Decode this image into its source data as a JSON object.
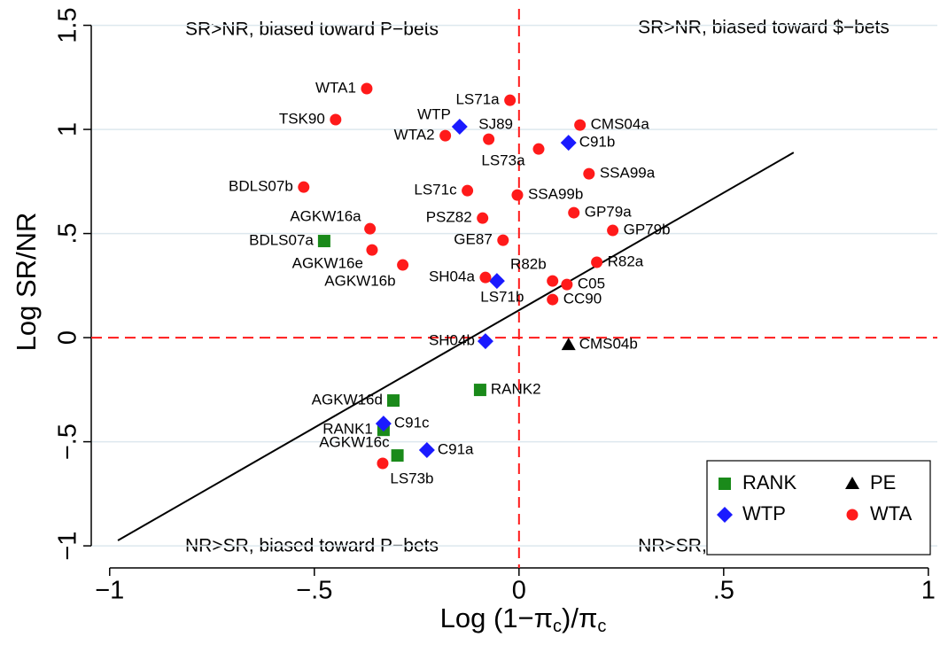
{
  "chart_data": {
    "type": "scatter",
    "x_label": [
      "Log (1−π",
      "c",
      ")/π",
      "c"
    ],
    "y_label": "Log SR/NR",
    "xlim": [
      -1.045,
      1.022
    ],
    "ylim": [
      -1.106,
      1.579
    ],
    "xticks": [
      {
        "value": -1,
        "label": "−1"
      },
      {
        "value": -0.5,
        "label": "−.5"
      },
      0,
      {
        "value": 0.5,
        "label": ".5"
      },
      1
    ],
    "yticks": [
      {
        "value": -1,
        "label": "−1"
      },
      {
        "value": -0.5,
        "label": "−.5"
      },
      0,
      {
        "value": 0.5,
        "label": ".5"
      },
      1,
      1.5
    ],
    "grid": "y",
    "ref_lines": {
      "x": 0,
      "y": 0,
      "color": "#ff1a1a"
    },
    "annotations": [
      "SR>NR, biased toward P−bets",
      "SR>NR, biased toward $−bets",
      "NR>SR, biased toward P−bets",
      "NR>SR, biased toward $−bets"
    ],
    "fit_line": {
      "x": [
        -0.98,
        0.671
      ],
      "y": [
        -0.974,
        0.889
      ],
      "color": "#000000"
    },
    "legend": "bottom-right",
    "series": [
      {
        "name": "RANK",
        "color": "#1a8a1a",
        "marker": "square",
        "labels": [
          "BDLS07a",
          "AGKW16d",
          "RANK2",
          "RANK1",
          "AGKW16c"
        ],
        "x": [
          -0.476,
          -0.307,
          -0.095,
          -0.331,
          -0.297
        ],
        "values": [
          0.464,
          -0.302,
          -0.251,
          -0.443,
          -0.566
        ]
      },
      {
        "name": "PE",
        "color": "#000000",
        "marker": "triangle",
        "labels": [
          "CMS04b"
        ],
        "x": [
          0.121
        ],
        "values": [
          -0.034
        ]
      },
      {
        "name": "WTP",
        "color": "#1a1aff",
        "marker": "diamond",
        "labels": [
          "WTP",
          "C91b",
          "LS71b",
          "SH04b",
          "C91c",
          "C91a"
        ],
        "x": [
          -0.145,
          0.121,
          -0.054,
          -0.082,
          -0.331,
          -0.225
        ],
        "values": [
          1.013,
          0.936,
          0.272,
          -0.017,
          -0.413,
          -0.54
        ]
      },
      {
        "name": "WTA",
        "color": "#ff1a1a",
        "marker": "circle",
        "labels": [
          "WTA1",
          "LS71a",
          "TSK90",
          "CMS04a",
          "WTA2",
          "SJ89",
          "LS73a",
          "SSA99a",
          "BDLS07b",
          "LS71c",
          "SSA99b",
          "GP79a",
          "PSZ82",
          "AGKW16a",
          "GP79b",
          "GE87",
          "AGKW16e",
          "AGKW16b",
          "R82a",
          "SH04a",
          "R82b",
          "C05",
          "CC90",
          "LS73b"
        ],
        "x": [
          -0.372,
          -0.022,
          -0.448,
          0.149,
          -0.18,
          -0.074,
          0.048,
          0.171,
          -0.526,
          -0.126,
          -0.004,
          0.134,
          -0.089,
          -0.364,
          0.229,
          -0.039,
          -0.359,
          -0.284,
          0.19,
          -0.082,
          0.082,
          0.117,
          0.082,
          -0.333
        ],
        "values": [
          1.196,
          1.14,
          1.047,
          1.021,
          0.97,
          0.953,
          0.906,
          0.787,
          0.723,
          0.706,
          0.685,
          0.6,
          0.574,
          0.523,
          0.515,
          0.468,
          0.421,
          0.349,
          0.362,
          0.289,
          0.272,
          0.255,
          0.183,
          -0.604
        ]
      }
    ]
  }
}
